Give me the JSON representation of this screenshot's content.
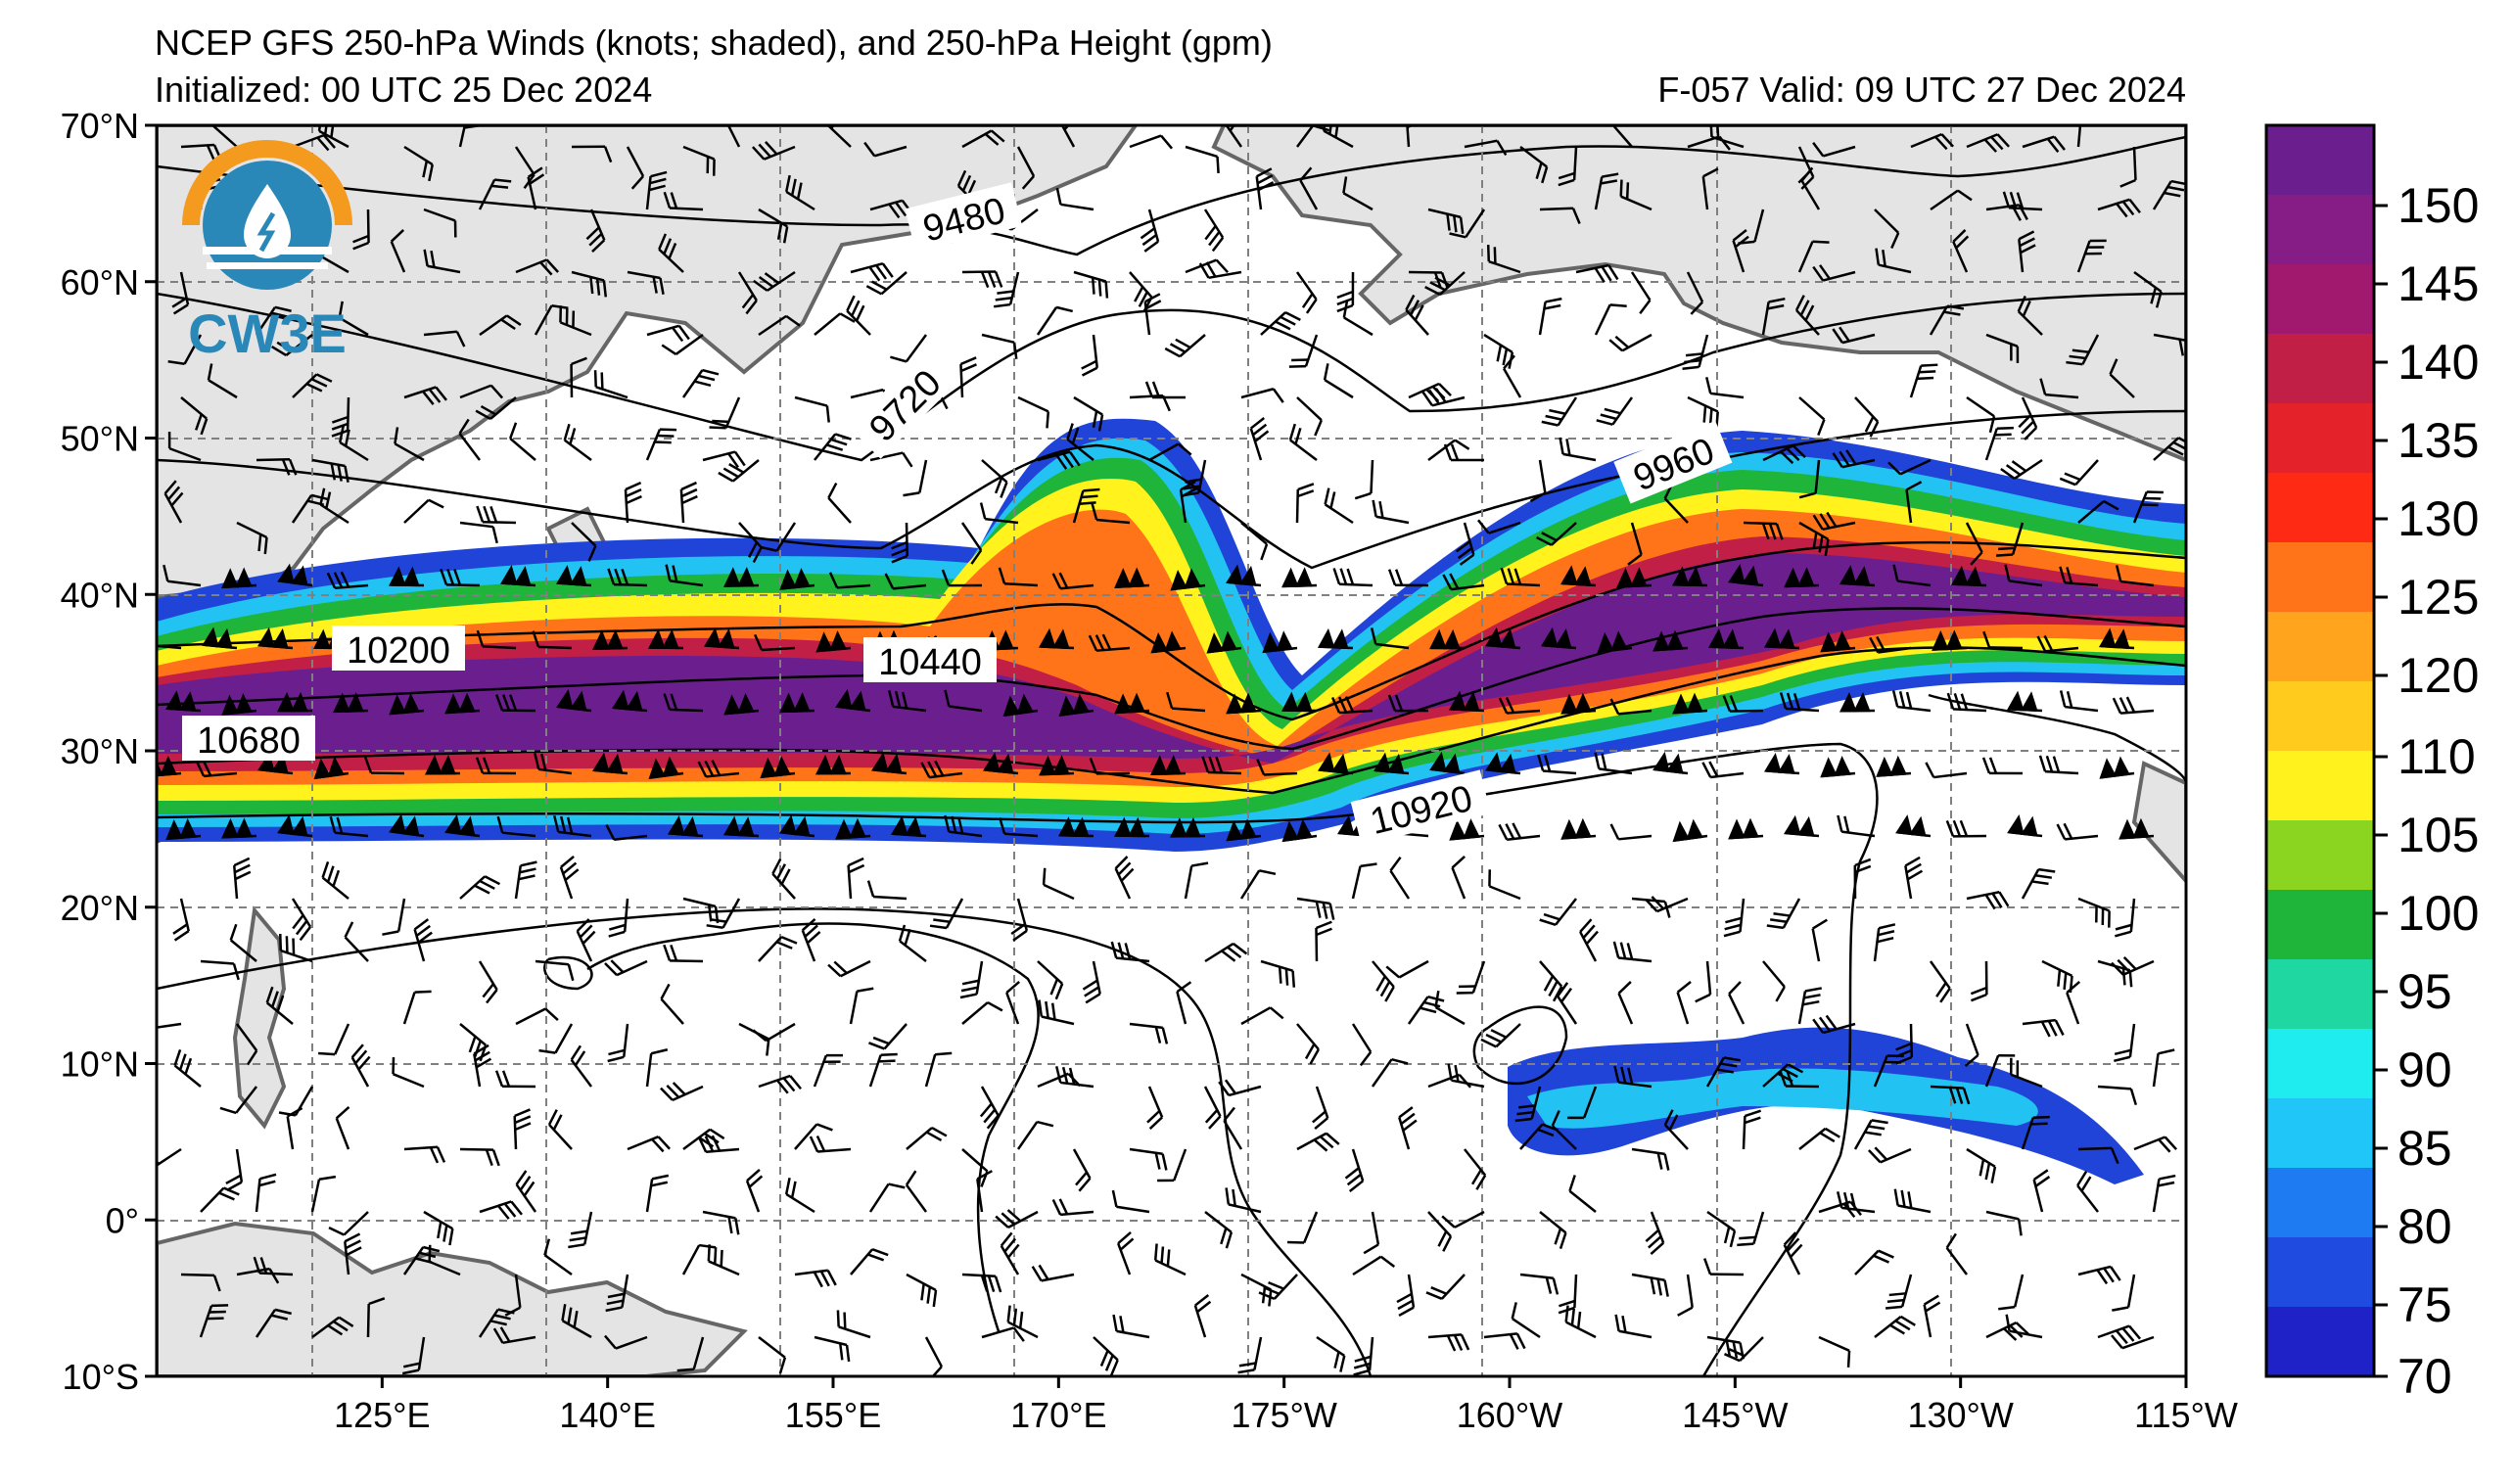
{
  "title": {
    "line1": "NCEP GFS 250-hPa Winds (knots; shaded), and 250-hPa Height (gpm)",
    "initialized": "Initialized: 00 UTC 25 Dec 2024",
    "valid": "F-057  Valid: 09 UTC 27 Dec 2024"
  },
  "logo": {
    "text": "CW3E"
  },
  "map": {
    "lon_ticks": [
      "125°E",
      "140°E",
      "155°E",
      "170°E",
      "175°W",
      "160°W",
      "145°W",
      "130°W",
      "115°W"
    ],
    "lat_ticks": [
      "70°N",
      "60°N",
      "50°N",
      "40°N",
      "30°N",
      "20°N",
      "10°N",
      "0°",
      "10°S"
    ],
    "contour_labels": [
      "9480",
      "9720",
      "9960",
      "10200",
      "10440",
      "10680",
      "10920"
    ]
  },
  "colorbar": {
    "ticks": [
      "150",
      "145",
      "140",
      "135",
      "130",
      "125",
      "120",
      "110",
      "105",
      "100",
      "95",
      "90",
      "85",
      "80",
      "75",
      "70"
    ],
    "colors": [
      "#6b1f8f",
      "#861c86",
      "#a0196f",
      "#c21f46",
      "#e3222a",
      "#ff2a14",
      "#ff7418",
      "#ffa41c",
      "#ffcb1d",
      "#fff21d",
      "#8bd41f",
      "#1fb53b",
      "#1fd7a0",
      "#1fecef",
      "#1fc6f7",
      "#1f7bf1",
      "#1f4be0",
      "#1f22c7"
    ]
  },
  "colors": {
    "axis": "#000000",
    "land": "#e6e6e6",
    "coast": "#666666",
    "grid": "#808080"
  }
}
